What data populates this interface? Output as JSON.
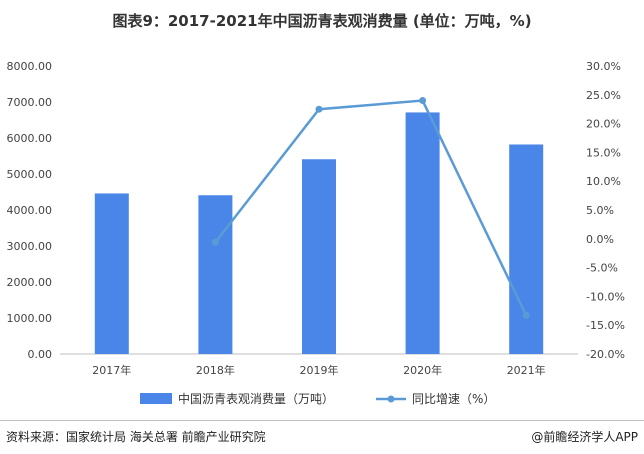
{
  "chart_data": {
    "type": "bar",
    "title": "图表9：2017-2021年中国沥青表观消费量 (单位：万吨，%)",
    "categories": [
      "2017年",
      "2018年",
      "2019年",
      "2020年",
      "2021年"
    ],
    "series": [
      {
        "name": "中国沥青表观消费量（万吨）",
        "type": "bar",
        "axis": "left",
        "values": [
          4460,
          4410,
          5410,
          6710,
          5820
        ]
      },
      {
        "name": "同比增速（%）",
        "type": "line",
        "axis": "right",
        "values": [
          null,
          -0.6,
          22.5,
          24.0,
          -13.3
        ]
      }
    ],
    "y_left": {
      "min": 0,
      "max": 8000,
      "step": 1000,
      "ticks": [
        "0.00",
        "1000.00",
        "2000.00",
        "3000.00",
        "4000.00",
        "5000.00",
        "6000.00",
        "7000.00",
        "8000.00"
      ]
    },
    "y_right": {
      "min": -20,
      "max": 30,
      "step": 5,
      "ticks": [
        "-20.0%",
        "-15.0%",
        "-10.0%",
        "-5.0%",
        "0.0%",
        "5.0%",
        "10.0%",
        "15.0%",
        "20.0%",
        "25.0%",
        "30.0%"
      ]
    },
    "grid": false,
    "legend_position": "bottom",
    "colors": {
      "bar": "#4a86e8",
      "line": "#5b9bd5"
    }
  },
  "footer": {
    "source": "资料来源：国家统计局 海关总署 前瞻产业研究院",
    "brand": "@前瞻经济学人APP"
  }
}
